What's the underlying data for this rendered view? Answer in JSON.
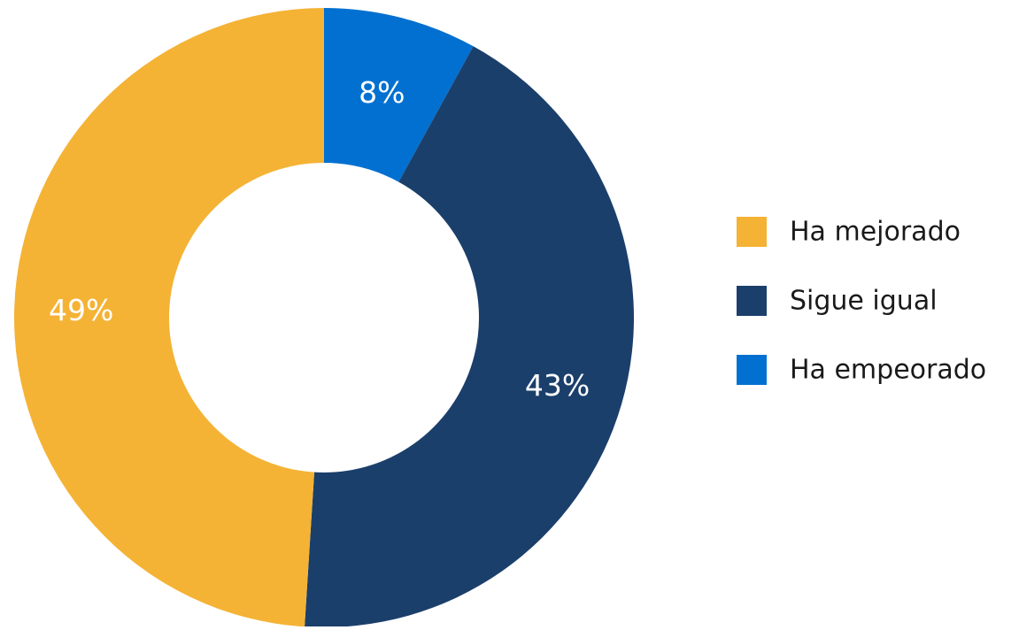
{
  "chart_data": {
    "type": "pie",
    "categories": [
      "Ha mejorado",
      "Sigue igual",
      "Ha empeorado"
    ],
    "values": [
      49,
      43,
      8
    ],
    "data_labels": [
      "49%",
      "43%",
      "8%"
    ],
    "colors": [
      "#F4B335",
      "#1B3F6B",
      "#0270D0"
    ],
    "donut": true,
    "legend_position": "right",
    "title": ""
  }
}
